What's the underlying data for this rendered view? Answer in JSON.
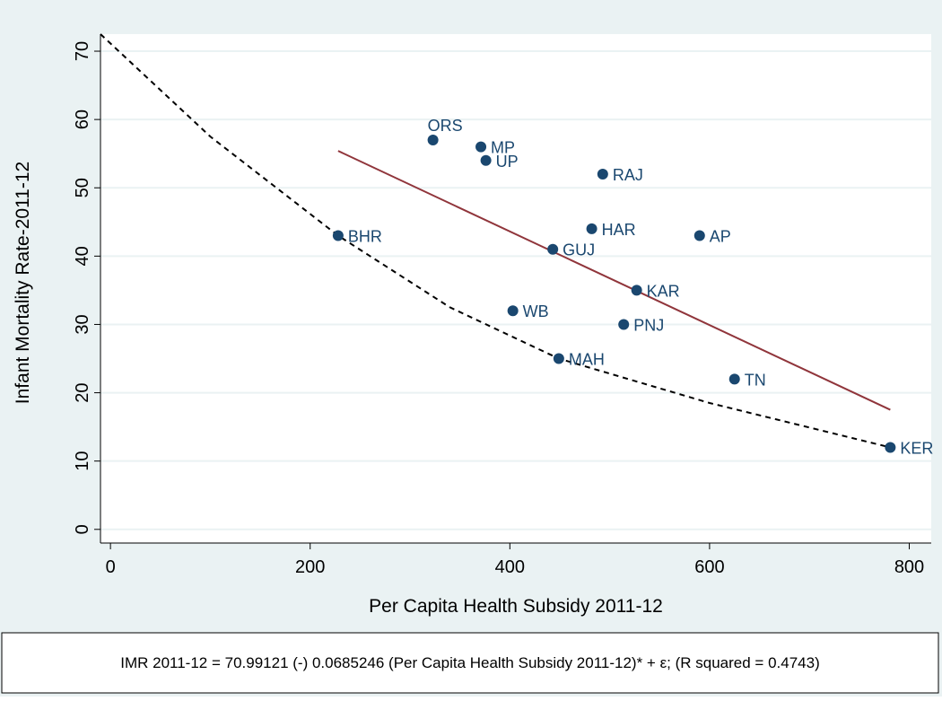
{
  "chart_data": {
    "type": "scatter",
    "x_label": "Per Capita Health Subsidy 2011-12",
    "y_label": "Infant Mortality Rate-2011-12",
    "labels": [
      "ORS",
      "MP",
      "UP",
      "RAJ",
      "BHR",
      "HAR",
      "AP",
      "GUJ",
      "KAR",
      "WB",
      "PNJ",
      "MAH",
      "TN",
      "KER"
    ],
    "x": [
      323,
      371,
      376,
      493,
      228,
      482,
      590,
      443,
      527,
      403,
      514,
      449,
      625,
      781
    ],
    "y": [
      57,
      56,
      54,
      52,
      43,
      44,
      43,
      41,
      35,
      32,
      30,
      25,
      22,
      12
    ],
    "color": "#1a476f",
    "fit_line": {
      "color": "#90353b",
      "x": [
        228,
        781
      ],
      "y": [
        55.4,
        17.5
      ]
    },
    "curve": {
      "color": "#000000",
      "x": [
        -10,
        100,
        228,
        340,
        449,
        600,
        781
      ],
      "y": [
        72.5,
        57.5,
        43,
        32.5,
        25,
        18.5,
        12
      ]
    },
    "xlim": [
      -10,
      822
    ],
    "ylim": [
      -2,
      72.5
    ],
    "xticks": [
      0,
      200,
      400,
      600,
      800
    ],
    "yticks": [
      0,
      10,
      20,
      30,
      40,
      50,
      60,
      70
    ],
    "grid": true,
    "note": "IMR 2011-12 = 70.99121 (-) 0.0685246 (Per Capita Health Subsidy 2011-12)* + ε; (R squared = 0.4743)"
  }
}
